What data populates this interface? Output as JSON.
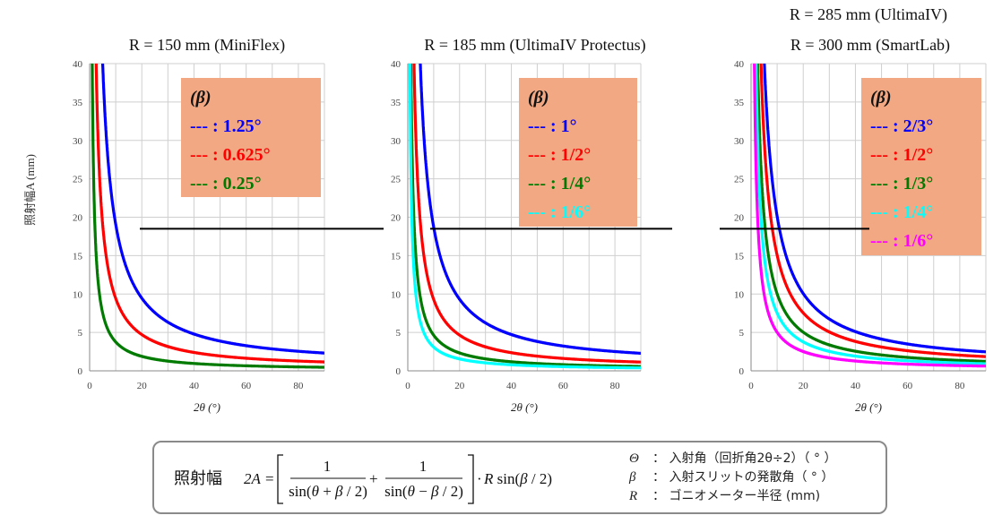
{
  "y_axis_label": "照射幅A (mm)",
  "chart_data": [
    {
      "type": "line",
      "title": "R = 150 mm (MiniFlex)",
      "R": 150,
      "xlabel": "2θ (°)",
      "xlim": [
        0,
        90
      ],
      "ylim": [
        0,
        40
      ],
      "xticks": [
        "0",
        "20",
        "40",
        "60",
        "80"
      ],
      "yticks": [
        "0",
        "5",
        "10",
        "15",
        "20",
        "25",
        "30",
        "35",
        "40"
      ],
      "reference_line_y": 18.5,
      "legend_header": "(β)",
      "legend_bg": "#f2a883",
      "series": [
        {
          "name": "--- : 1.25°",
          "beta_deg": 1.25,
          "color": "#0000ff"
        },
        {
          "name": "--- : 0.625°",
          "beta_deg": 0.625,
          "color": "#ff0000"
        },
        {
          "name": "--- : 0.25°",
          "beta_deg": 0.25,
          "color": "#007a00"
        }
      ]
    },
    {
      "type": "line",
      "title": "R = 185 mm (UltimaIV Protectus)",
      "R": 185,
      "xlabel": "2θ (°)",
      "xlim": [
        0,
        90
      ],
      "ylim": [
        0,
        40
      ],
      "xticks": [
        "0",
        "20",
        "40",
        "60",
        "80"
      ],
      "yticks": [
        "0",
        "5",
        "10",
        "15",
        "20",
        "25",
        "30",
        "35",
        "40"
      ],
      "reference_line_y": 18.5,
      "legend_header": "(β)",
      "legend_bg": "#f2a883",
      "series": [
        {
          "name": "--- : 1°",
          "beta_deg": 1,
          "color": "#0000ff"
        },
        {
          "name": "--- : 1/2°",
          "beta_deg": 0.5,
          "color": "#ff0000"
        },
        {
          "name": "--- : 1/4°",
          "beta_deg": 0.25,
          "color": "#007a00"
        },
        {
          "name": "--- : 1/6°",
          "beta_deg": 0.1667,
          "color": "#00ffff"
        }
      ]
    },
    {
      "type": "line",
      "title": "R = 285 mm (UltimaIV)",
      "subtitle": "R = 300 mm (SmartLab)",
      "R": 300,
      "xlabel": "2θ (°)",
      "xlim": [
        0,
        90
      ],
      "ylim": [
        0,
        40
      ],
      "xticks": [
        "0",
        "20",
        "40",
        "60",
        "80"
      ],
      "yticks": [
        "0",
        "5",
        "10",
        "15",
        "20",
        "25",
        "30",
        "35",
        "40"
      ],
      "reference_line_y": 18.5,
      "legend_header": "(β)",
      "legend_bg": "#f2a883",
      "series": [
        {
          "name": "--- : 2/3°",
          "beta_deg": 0.6667,
          "color": "#0000ff"
        },
        {
          "name": "--- : 1/2°",
          "beta_deg": 0.5,
          "color": "#ff0000"
        },
        {
          "name": "--- : 1/3°",
          "beta_deg": 0.3333,
          "color": "#007a00"
        },
        {
          "name": "--- : 1/4°",
          "beta_deg": 0.25,
          "color": "#00ffff"
        },
        {
          "name": "--- : 1/6°",
          "beta_deg": 0.1667,
          "color": "#ff00ff"
        }
      ]
    }
  ],
  "formula": {
    "label": "照射幅",
    "definitions": [
      {
        "symbol": "Θ",
        "text": "： 入射角（回折角2θ÷2）（ ° ）"
      },
      {
        "symbol": "β",
        "text": "： 入射スリットの発散角（ ° ）"
      },
      {
        "symbol": "R",
        "text": "： ゴニオメーター半径 (mm)"
      }
    ]
  }
}
